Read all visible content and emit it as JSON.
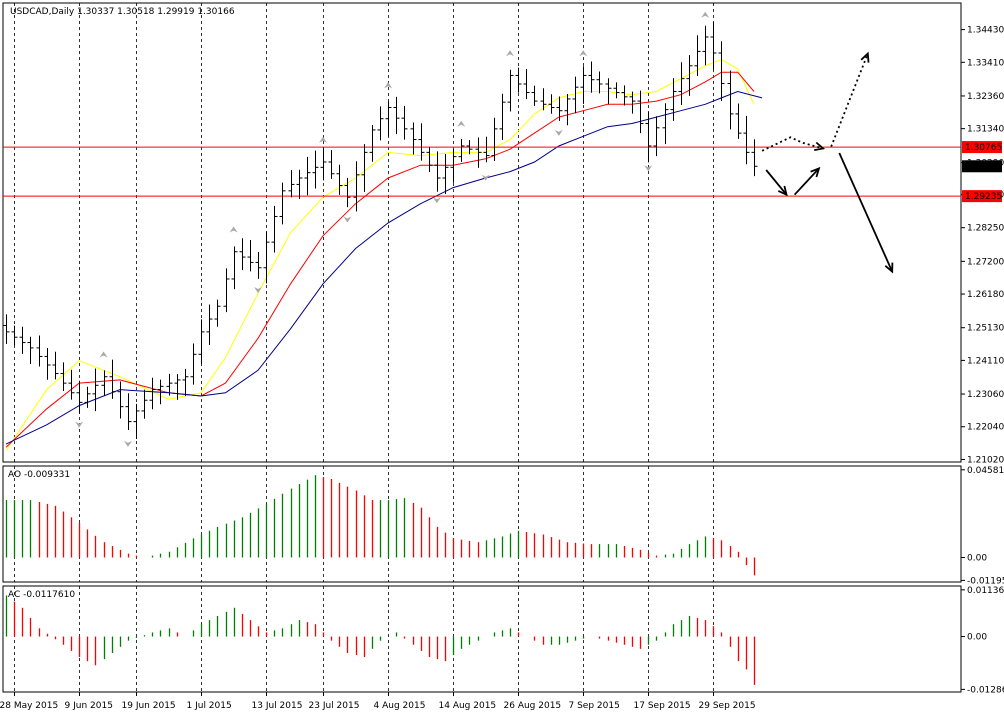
{
  "chart_data": [
    {
      "type": "ohlc",
      "symbol_header": "USDCAD,Daily  1.30337 1.30518 1.29919 1.30166",
      "y_ticks": [
        1.3443,
        1.3341,
        1.3236,
        1.3134,
        1.3029,
        1.2928,
        1.2825,
        1.272,
        1.2618,
        1.2513,
        1.2411,
        1.2306,
        1.2204,
        1.2102
      ],
      "y_tick_labels": [
        "1.34430",
        "1.33410",
        "1.32360",
        "1.31340",
        "1.30290",
        "1.29280",
        "1.28250",
        "1.27200",
        "1.26180",
        "1.25130",
        "1.24110",
        "1.23060",
        "1.22040",
        "1.21020"
      ],
      "ylim": [
        1.2094,
        1.3526
      ],
      "current_price_label": "1.30166",
      "current_price": 1.30166,
      "levels": [
        {
          "label": "1.30765",
          "value": 1.30765,
          "color": "#ff0000"
        },
        {
          "label": "1.29235",
          "value": 1.29235,
          "color": "#ff0000"
        }
      ],
      "x_labels": [
        "28 May 2015",
        "9 Jun 2015",
        "19 Jun 2015",
        "1 Jul 2015",
        "13 Jul 2015",
        "23 Jul 2015",
        "4 Aug 2015",
        "14 Aug 2015",
        "26 Aug 2015",
        "7 Sep 2015",
        "17 Sep 2015",
        "29 Sep 2015"
      ],
      "x_label_bar_index": [
        1,
        9,
        16,
        24,
        32,
        39,
        47,
        55,
        63,
        71,
        79,
        87
      ],
      "bar_count": 93,
      "close_anchors": [
        [
          0,
          1.25
        ],
        [
          3,
          1.245
        ],
        [
          6,
          1.237
        ],
        [
          9,
          1.228
        ],
        [
          12,
          1.236
        ],
        [
          15,
          1.222
        ],
        [
          18,
          1.232
        ],
        [
          22,
          1.236
        ],
        [
          24,
          1.25
        ],
        [
          26,
          1.258
        ],
        [
          28,
          1.275
        ],
        [
          31,
          1.27
        ],
        [
          34,
          1.294
        ],
        [
          36,
          1.298
        ],
        [
          39,
          1.303
        ],
        [
          42,
          1.292
        ],
        [
          45,
          1.313
        ],
        [
          47,
          1.32
        ],
        [
          50,
          1.31
        ],
        [
          53,
          1.298
        ],
        [
          56,
          1.308
        ],
        [
          59,
          1.305
        ],
        [
          62,
          1.33
        ],
        [
          65,
          1.322
        ],
        [
          68,
          1.319
        ],
        [
          71,
          1.33
        ],
        [
          74,
          1.326
        ],
        [
          77,
          1.322
        ],
        [
          79,
          1.308
        ],
        [
          82,
          1.325
        ],
        [
          84,
          1.333
        ],
        [
          86,
          1.342
        ],
        [
          87,
          1.337
        ],
        [
          89,
          1.318
        ],
        [
          91,
          1.306
        ],
        [
          92,
          1.30166
        ]
      ],
      "moving_averages": [
        {
          "color": "#ffff00",
          "points": [
            [
              0,
              1.213
            ],
            [
              5,
              1.232
            ],
            [
              9,
              1.241
            ],
            [
              14,
              1.236
            ],
            [
              20,
              1.229
            ],
            [
              24,
              1.231
            ],
            [
              27,
              1.242
            ],
            [
              31,
              1.262
            ],
            [
              35,
              1.281
            ],
            [
              39,
              1.292
            ],
            [
              43,
              1.298
            ],
            [
              47,
              1.306
            ],
            [
              51,
              1.305
            ],
            [
              55,
              1.306
            ],
            [
              59,
              1.306
            ],
            [
              62,
              1.31
            ],
            [
              65,
              1.318
            ],
            [
              68,
              1.323
            ],
            [
              71,
              1.325
            ],
            [
              74,
              1.325
            ],
            [
              77,
              1.324
            ],
            [
              80,
              1.325
            ],
            [
              83,
              1.329
            ],
            [
              86,
              1.333
            ],
            [
              88,
              1.335
            ],
            [
              90,
              1.332
            ],
            [
              92,
              1.321
            ]
          ]
        },
        {
          "color": "#ff0000",
          "points": [
            [
              0,
              1.214
            ],
            [
              5,
              1.226
            ],
            [
              9,
              1.234
            ],
            [
              14,
              1.235
            ],
            [
              20,
              1.231
            ],
            [
              24,
              1.23
            ],
            [
              27,
              1.234
            ],
            [
              31,
              1.248
            ],
            [
              35,
              1.265
            ],
            [
              39,
              1.28
            ],
            [
              43,
              1.29
            ],
            [
              47,
              1.298
            ],
            [
              51,
              1.302
            ],
            [
              55,
              1.302
            ],
            [
              59,
              1.304
            ],
            [
              62,
              1.307
            ],
            [
              65,
              1.312
            ],
            [
              68,
              1.317
            ],
            [
              71,
              1.319
            ],
            [
              74,
              1.321
            ],
            [
              77,
              1.321
            ],
            [
              80,
              1.322
            ],
            [
              83,
              1.324
            ],
            [
              86,
              1.328
            ],
            [
              88,
              1.331
            ],
            [
              90,
              1.331
            ],
            [
              92,
              1.325
            ]
          ]
        },
        {
          "color": "#00008b",
          "points": [
            [
              0,
              1.215
            ],
            [
              5,
              1.221
            ],
            [
              9,
              1.227
            ],
            [
              14,
              1.232
            ],
            [
              20,
              1.231
            ],
            [
              24,
              1.23
            ],
            [
              27,
              1.231
            ],
            [
              31,
              1.238
            ],
            [
              35,
              1.251
            ],
            [
              39,
              1.265
            ],
            [
              43,
              1.276
            ],
            [
              47,
              1.284
            ],
            [
              51,
              1.29
            ],
            [
              55,
              1.295
            ],
            [
              59,
              1.298
            ],
            [
              62,
              1.3
            ],
            [
              65,
              1.303
            ],
            [
              68,
              1.308
            ],
            [
              71,
              1.311
            ],
            [
              74,
              1.314
            ],
            [
              77,
              1.315
            ],
            [
              80,
              1.317
            ],
            [
              83,
              1.319
            ],
            [
              86,
              1.321
            ],
            [
              88,
              1.323
            ],
            [
              90,
              1.325
            ],
            [
              93,
              1.323
            ]
          ]
        }
      ],
      "forecast_arrows": [
        {
          "style": "solid",
          "points": [
            [
              93.5,
              1.3005
            ],
            [
              96,
              1.2928
            ]
          ]
        },
        {
          "style": "solid",
          "points": [
            [
              97,
              1.2928
            ],
            [
              100,
              1.301
            ]
          ]
        },
        {
          "style": "dotted",
          "points": [
            [
              93,
              1.3065
            ],
            [
              96.5,
              1.3107
            ],
            [
              98,
              1.309
            ],
            [
              100.5,
              1.3072
            ]
          ]
        },
        {
          "style": "dotted",
          "points": [
            [
              101.5,
              1.3078
            ],
            [
              106,
              1.3368
            ]
          ]
        },
        {
          "style": "solid",
          "points": [
            [
              102.5,
              1.3058
            ],
            [
              109,
              1.2688
            ]
          ]
        }
      ]
    },
    {
      "type": "bar",
      "indicator": "AO",
      "header": "AO -0.009331",
      "y_tick_labels": [
        "0.045815",
        "0.00",
        "-0.011957"
      ],
      "y_ticks": [
        0.045815,
        0.0,
        -0.011957
      ],
      "ylim": [
        -0.0128,
        0.0478
      ],
      "colors": {
        "up": "#008000",
        "down": "#ff0000"
      },
      "anchors": [
        [
          0,
          0.03
        ],
        [
          3,
          0.03
        ],
        [
          6,
          0.027
        ],
        [
          9,
          0.018
        ],
        [
          12,
          0.008
        ],
        [
          15,
          0.002
        ],
        [
          17,
          0.0
        ],
        [
          20,
          0.003
        ],
        [
          23,
          0.01
        ],
        [
          26,
          0.016
        ],
        [
          29,
          0.021
        ],
        [
          32,
          0.028
        ],
        [
          35,
          0.036
        ],
        [
          38,
          0.043
        ],
        [
          40,
          0.041
        ],
        [
          43,
          0.035
        ],
        [
          45,
          0.03
        ],
        [
          47,
          0.03
        ],
        [
          49,
          0.031
        ],
        [
          51,
          0.026
        ],
        [
          53,
          0.016
        ],
        [
          55,
          0.01
        ],
        [
          58,
          0.008
        ],
        [
          61,
          0.011
        ],
        [
          63,
          0.014
        ],
        [
          66,
          0.012
        ],
        [
          69,
          0.008
        ],
        [
          72,
          0.007
        ],
        [
          75,
          0.007
        ],
        [
          78,
          0.004
        ],
        [
          80,
          0.001
        ],
        [
          82,
          0.002
        ],
        [
          84,
          0.007
        ],
        [
          86,
          0.011
        ],
        [
          88,
          0.009
        ],
        [
          90,
          0.003
        ],
        [
          91,
          -0.004
        ],
        [
          92,
          -0.009331
        ]
      ]
    },
    {
      "type": "bar",
      "indicator": "AC",
      "header": "AC -0.0117610",
      "y_tick_labels": [
        "0.011364",
        "0.00",
        "-0.012862"
      ],
      "y_ticks": [
        0.011364,
        0.0,
        -0.012862
      ],
      "ylim": [
        -0.0135,
        0.0123
      ],
      "colors": {
        "up": "#008000",
        "down": "#ff0000"
      },
      "anchors": [
        [
          0,
          0.01
        ],
        [
          2,
          0.007
        ],
        [
          4,
          0.002
        ],
        [
          7,
          -0.002
        ],
        [
          9,
          -0.005
        ],
        [
          11,
          -0.007
        ],
        [
          13,
          -0.004
        ],
        [
          15,
          -0.001
        ],
        [
          18,
          0.001
        ],
        [
          20,
          0.002
        ],
        [
          22,
          0.0
        ],
        [
          24,
          0.003
        ],
        [
          26,
          0.005
        ],
        [
          28,
          0.007
        ],
        [
          30,
          0.004
        ],
        [
          32,
          0.001
        ],
        [
          34,
          0.002
        ],
        [
          36,
          0.004
        ],
        [
          38,
          0.003
        ],
        [
          40,
          -0.001
        ],
        [
          42,
          -0.004
        ],
        [
          44,
          -0.005
        ],
        [
          46,
          -0.001
        ],
        [
          48,
          0.001
        ],
        [
          50,
          -0.002
        ],
        [
          52,
          -0.005
        ],
        [
          54,
          -0.006
        ],
        [
          56,
          -0.003
        ],
        [
          58,
          -0.001
        ],
        [
          60,
          0.001
        ],
        [
          62,
          0.002
        ],
        [
          64,
          0.0
        ],
        [
          66,
          -0.002
        ],
        [
          68,
          -0.002
        ],
        [
          70,
          -0.001
        ],
        [
          72,
          0.0
        ],
        [
          74,
          -0.001
        ],
        [
          76,
          -0.002
        ],
        [
          78,
          -0.003
        ],
        [
          80,
          -0.001
        ],
        [
          82,
          0.003
        ],
        [
          84,
          0.005
        ],
        [
          86,
          0.004
        ],
        [
          88,
          0.001
        ],
        [
          90,
          -0.006
        ],
        [
          91,
          -0.008
        ],
        [
          92,
          -0.011761
        ]
      ]
    }
  ]
}
